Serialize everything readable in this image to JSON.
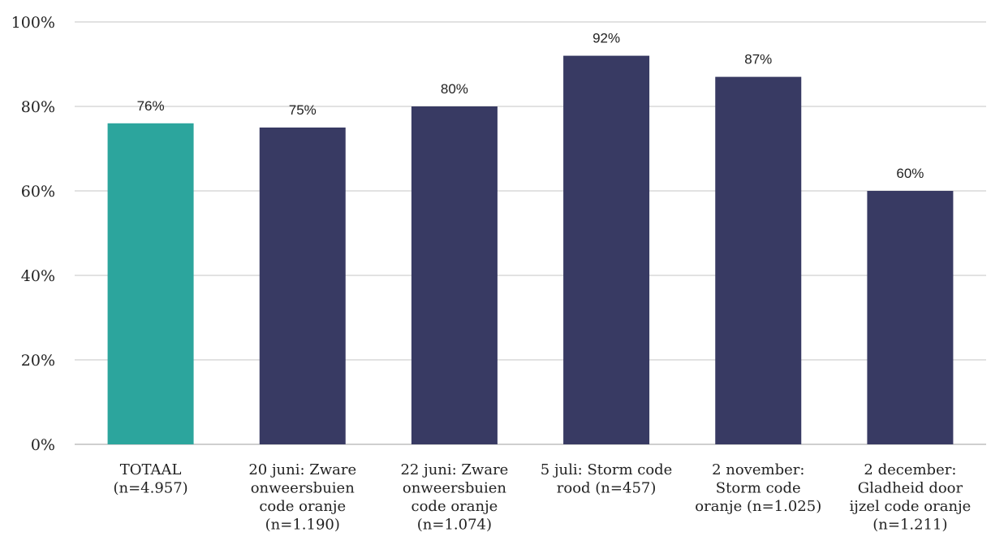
{
  "chart_data": {
    "type": "bar",
    "categories": [
      [
        "TOTAAL",
        "(n=4.957)"
      ],
      [
        "20 juni: Zware",
        "onweersbuien",
        "code oranje",
        "(n=1.190)"
      ],
      [
        "22 juni: Zware",
        "onweersbuien",
        "code oranje",
        "(n=1.074)"
      ],
      [
        "5 juli: Storm code",
        "rood (n=457)"
      ],
      [
        "2 november:",
        "Storm code",
        "oranje (n=1.025)"
      ],
      [
        "2 december:",
        "Gladheid door",
        "ijzel code oranje",
        "(n=1.211)"
      ]
    ],
    "values": [
      76,
      75,
      80,
      92,
      87,
      60
    ],
    "data_labels": [
      "76%",
      "75%",
      "80%",
      "92%",
      "87%",
      "60%"
    ],
    "bar_colors": [
      "#2ca59d",
      "#383a63",
      "#383a63",
      "#383a63",
      "#383a63",
      "#383a63"
    ],
    "ylim": [
      0,
      100
    ],
    "yticks": [
      0,
      20,
      40,
      60,
      80,
      100
    ],
    "ytick_labels": [
      "0%",
      "20%",
      "40%",
      "60%",
      "80%",
      "100%"
    ],
    "grid": true,
    "legend": "none"
  }
}
